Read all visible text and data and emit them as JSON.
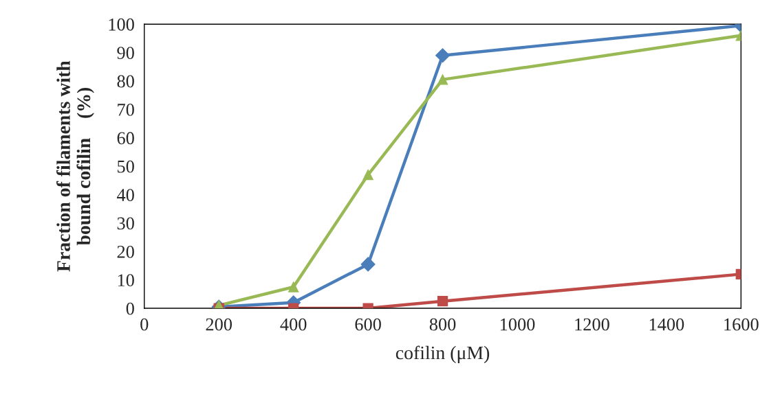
{
  "chart_data": {
    "type": "line",
    "xlabel": "cofilin (μM)",
    "ylabel": "Fraction of filaments with\nbound cofilin    (%)",
    "x": [
      200,
      400,
      600,
      800,
      1600
    ],
    "series": [
      {
        "color": "#4a7ebb",
        "marker": "diamond",
        "values": [
          0.5,
          2,
          15.5,
          89,
          99.5
        ]
      },
      {
        "color": "#be4b48",
        "marker": "square",
        "values": [
          0,
          0,
          0,
          2.5,
          12
        ]
      },
      {
        "color": "#98b954",
        "marker": "triangle",
        "values": [
          1,
          7.5,
          47,
          80.5,
          96
        ]
      }
    ],
    "xlim": [
      0,
      1600
    ],
    "xticks": [
      0,
      200,
      400,
      600,
      800,
      1000,
      1200,
      1400,
      1600
    ],
    "ylim": [
      0,
      100
    ],
    "yticks": [
      0,
      10,
      20,
      30,
      40,
      50,
      60,
      70,
      80,
      90,
      100
    ],
    "grid": false,
    "legend": false
  }
}
